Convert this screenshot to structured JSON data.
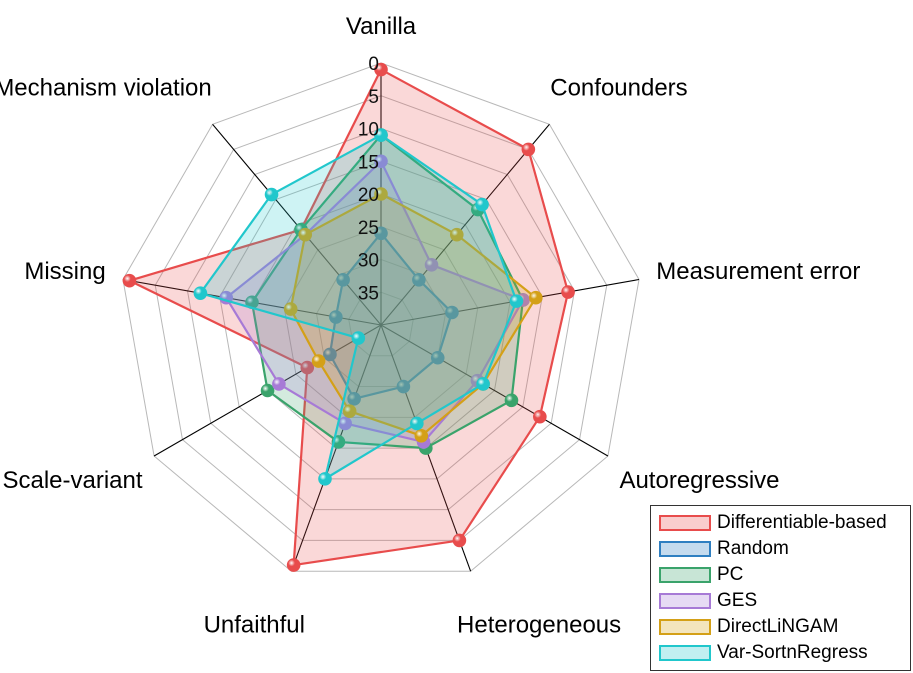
{
  "chart_data": {
    "type": "radar",
    "axes": [
      "Vanilla",
      "Confounders",
      "Measurement error",
      "Autoregressive",
      "Heterogeneous",
      "Unfaithful",
      "Scale-variant",
      "Missing",
      "Mechanism violation"
    ],
    "radial_ticks": [
      "0",
      "5",
      "10",
      "15",
      "20",
      "25",
      "30",
      "35"
    ],
    "radial_range": [
      0,
      40
    ],
    "radial_reversed": true,
    "series": [
      {
        "name": "Differentiable-based",
        "color": "#e84c4c",
        "values": [
          1,
          5,
          11,
          12,
          5,
          1,
          27,
          1,
          21
        ]
      },
      {
        "name": "Random",
        "color": "#2f7fc1",
        "values": [
          26,
          31,
          29,
          30,
          30,
          28,
          31,
          33,
          31
        ]
      },
      {
        "name": "PC",
        "color": "#3aa36b",
        "values": [
          11,
          17,
          18,
          17,
          20,
          21,
          20,
          20,
          21
        ]
      },
      {
        "name": "GES",
        "color": "#a77ad6",
        "values": [
          15,
          28,
          18,
          23,
          21,
          24,
          22,
          16,
          22
        ]
      },
      {
        "name": "DirectLiNGAM",
        "color": "#d4a017",
        "values": [
          20,
          22,
          16,
          22,
          22,
          26,
          29,
          26,
          22
        ]
      },
      {
        "name": "Var-SortnRegress",
        "color": "#21c7cc",
        "values": [
          11,
          16,
          19,
          22,
          24,
          15,
          36,
          12,
          14
        ]
      }
    ]
  }
}
